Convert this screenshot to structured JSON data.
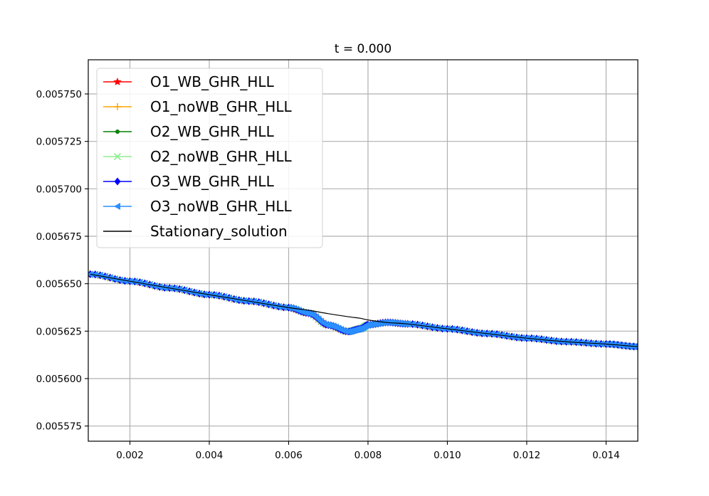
{
  "chart_data": {
    "type": "line",
    "title": "t = 0.000",
    "xlabel": "",
    "ylabel": "",
    "xlim": [
      0.00095,
      0.0148
    ],
    "ylim": [
      0.005567,
      0.005768
    ],
    "x_ticks": [
      0.002,
      0.004,
      0.006,
      0.008,
      0.01,
      0.012,
      0.014
    ],
    "x_tick_labels": [
      "0.002",
      "0.004",
      "0.006",
      "0.008",
      "0.010",
      "0.012",
      "0.014"
    ],
    "y_ticks": [
      0.005575,
      0.0056,
      0.005625,
      0.00565,
      0.005675,
      0.0057,
      0.005725,
      0.00575
    ],
    "y_tick_labels": [
      "0.005575",
      "0.005600",
      "0.005625",
      "0.005650",
      "0.005675",
      "0.005700",
      "0.005725",
      "0.005750"
    ],
    "grid": true,
    "legend_position": "top-left",
    "x": [
      0.001,
      0.002,
      0.003,
      0.004,
      0.005,
      0.006,
      0.0065,
      0.007,
      0.0075,
      0.0078,
      0.008,
      0.0085,
      0.009,
      0.01,
      0.011,
      0.012,
      0.013,
      0.014,
      0.0148
    ],
    "series": [
      {
        "name": "O1_WB_GHR_HLL",
        "color": "#ff0000",
        "marker": "star",
        "linewidth": 1.2,
        "values": [
          0.005655,
          0.0056513,
          0.0056477,
          0.0056442,
          0.0056408,
          0.0056374,
          0.0056345,
          0.0056282,
          0.0056248,
          0.0056262,
          0.0056283,
          0.0056296,
          0.0056288,
          0.0056262,
          0.0056237,
          0.0056213,
          0.0056194,
          0.0056182,
          0.0056168
        ]
      },
      {
        "name": "O1_noWB_GHR_HLL",
        "color": "#ffa500",
        "marker": "plus",
        "linewidth": 1.2,
        "values": [
          0.005655,
          0.0056513,
          0.0056477,
          0.0056442,
          0.0056408,
          0.0056374,
          0.0056345,
          0.0056282,
          0.0056248,
          0.0056262,
          0.0056283,
          0.0056296,
          0.0056288,
          0.0056262,
          0.0056237,
          0.0056213,
          0.0056194,
          0.0056182,
          0.0056168
        ]
      },
      {
        "name": "O2_WB_GHR_HLL",
        "color": "#008000",
        "marker": "dot",
        "linewidth": 1.2,
        "values": [
          0.005655,
          0.0056513,
          0.0056477,
          0.0056442,
          0.0056408,
          0.0056374,
          0.0056345,
          0.0056282,
          0.0056248,
          0.0056262,
          0.0056283,
          0.0056296,
          0.0056288,
          0.0056262,
          0.0056237,
          0.0056213,
          0.0056194,
          0.0056182,
          0.0056168
        ]
      },
      {
        "name": "O2_noWB_GHR_HLL",
        "color": "#90ee90",
        "marker": "x",
        "linewidth": 1.2,
        "values": [
          0.005655,
          0.0056513,
          0.0056477,
          0.0056442,
          0.0056408,
          0.0056374,
          0.0056345,
          0.0056282,
          0.0056248,
          0.0056262,
          0.0056283,
          0.0056296,
          0.0056288,
          0.0056262,
          0.0056237,
          0.0056213,
          0.0056194,
          0.0056182,
          0.0056168
        ]
      },
      {
        "name": "O3_WB_GHR_HLL",
        "color": "#0000ff",
        "marker": "diamond",
        "linewidth": 1.2,
        "values": [
          0.005655,
          0.0056513,
          0.0056477,
          0.0056442,
          0.0056408,
          0.0056374,
          0.0056345,
          0.0056282,
          0.0056248,
          0.0056262,
          0.0056283,
          0.0056296,
          0.0056288,
          0.0056262,
          0.0056237,
          0.0056213,
          0.0056194,
          0.0056182,
          0.0056168
        ]
      },
      {
        "name": "O3_noWB_GHR_HLL",
        "color": "#2a8fff",
        "marker": "triangle-left",
        "linewidth": 3.5,
        "values": [
          0.005655,
          0.0056513,
          0.0056477,
          0.0056442,
          0.0056408,
          0.0056374,
          0.0056345,
          0.0056282,
          0.0056248,
          0.0056262,
          0.0056283,
          0.0056296,
          0.0056288,
          0.0056262,
          0.0056237,
          0.0056213,
          0.0056194,
          0.0056182,
          0.0056168
        ]
      },
      {
        "name": "Stationary_solution",
        "color": "#000000",
        "marker": "none",
        "linewidth": 1.2,
        "values": [
          0.005655,
          0.0056513,
          0.0056477,
          0.0056442,
          0.0056408,
          0.0056374,
          0.005636,
          0.0056342,
          0.0056326,
          0.0056318,
          0.0056309,
          0.0056295,
          0.0056288,
          0.0056262,
          0.0056237,
          0.0056213,
          0.0056194,
          0.0056182,
          0.0056168
        ]
      }
    ]
  }
}
